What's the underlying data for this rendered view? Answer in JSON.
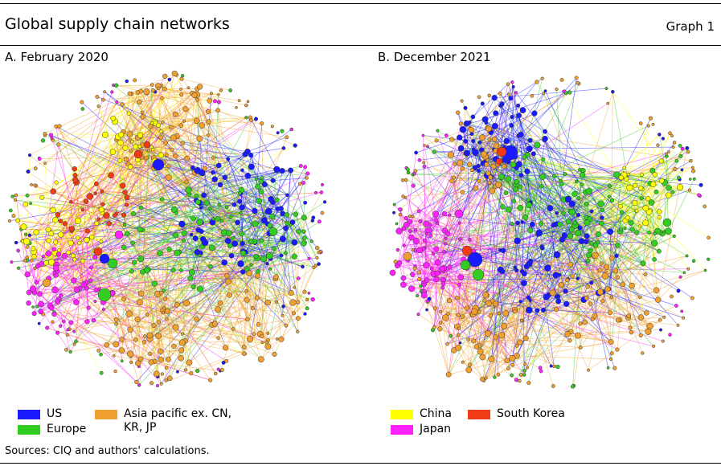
{
  "header": {
    "title": "Global supply chain networks",
    "graph_label": "Graph 1"
  },
  "panels": [
    {
      "title": "A. February 2020"
    },
    {
      "title": "B. December 2021"
    }
  ],
  "legend": [
    {
      "label": "US",
      "color": "#1a1aff"
    },
    {
      "label": "Europe",
      "color": "#33cc22"
    },
    {
      "label": "Asia pacific ex. CN,\nKR, JP",
      "color": "#f0a030"
    },
    {
      "label": "China",
      "color": "#ffff00"
    },
    {
      "label": "Japan",
      "color": "#ff22ff"
    },
    {
      "label": "South Korea",
      "color": "#f03c14"
    }
  ],
  "footer": {
    "sources": "Sources: CIQ and authors' calculations."
  }
}
